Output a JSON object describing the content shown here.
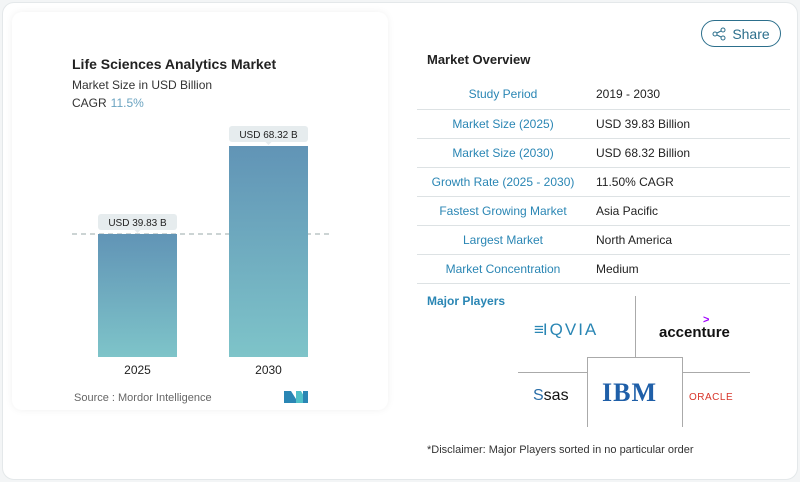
{
  "chart_data": {
    "type": "bar",
    "title": "Life Sciences Analytics Market",
    "subtitle": "Market Size in USD Billion",
    "cagr_label": "CAGR",
    "cagr_value": "11.5%",
    "categories": [
      "2025",
      "2030"
    ],
    "values": [
      39.83,
      68.32
    ],
    "data_labels": [
      "USD 39.83 B",
      "USD 68.32 B"
    ],
    "xlabel": "",
    "ylabel": "",
    "ylim": [
      0,
      68.32
    ],
    "source": "Source :  Mordor Intelligence"
  },
  "share_label": "Share",
  "overview": {
    "title": "Market Overview",
    "rows": [
      {
        "label": "Study Period",
        "value": "2019 - 2030"
      },
      {
        "label": "Market Size (2025)",
        "value": "USD 39.83 Billion"
      },
      {
        "label": "Market Size (2030)",
        "value": "USD 68.32 Billion"
      },
      {
        "label": "Growth Rate (2025 - 2030)",
        "value": "11.50% CAGR"
      },
      {
        "label": "Fastest Growing Market",
        "value": "Asia Pacific"
      },
      {
        "label": "Largest Market",
        "value": "North America"
      },
      {
        "label": "Market Concentration",
        "value": "Medium"
      }
    ]
  },
  "players": {
    "title": "Major Players",
    "logos": [
      "IQVIA",
      "accenture",
      "sas",
      "IBM",
      "ORACLE"
    ]
  },
  "disclaimer": "*Disclaimer: Major Players sorted in no particular order"
}
